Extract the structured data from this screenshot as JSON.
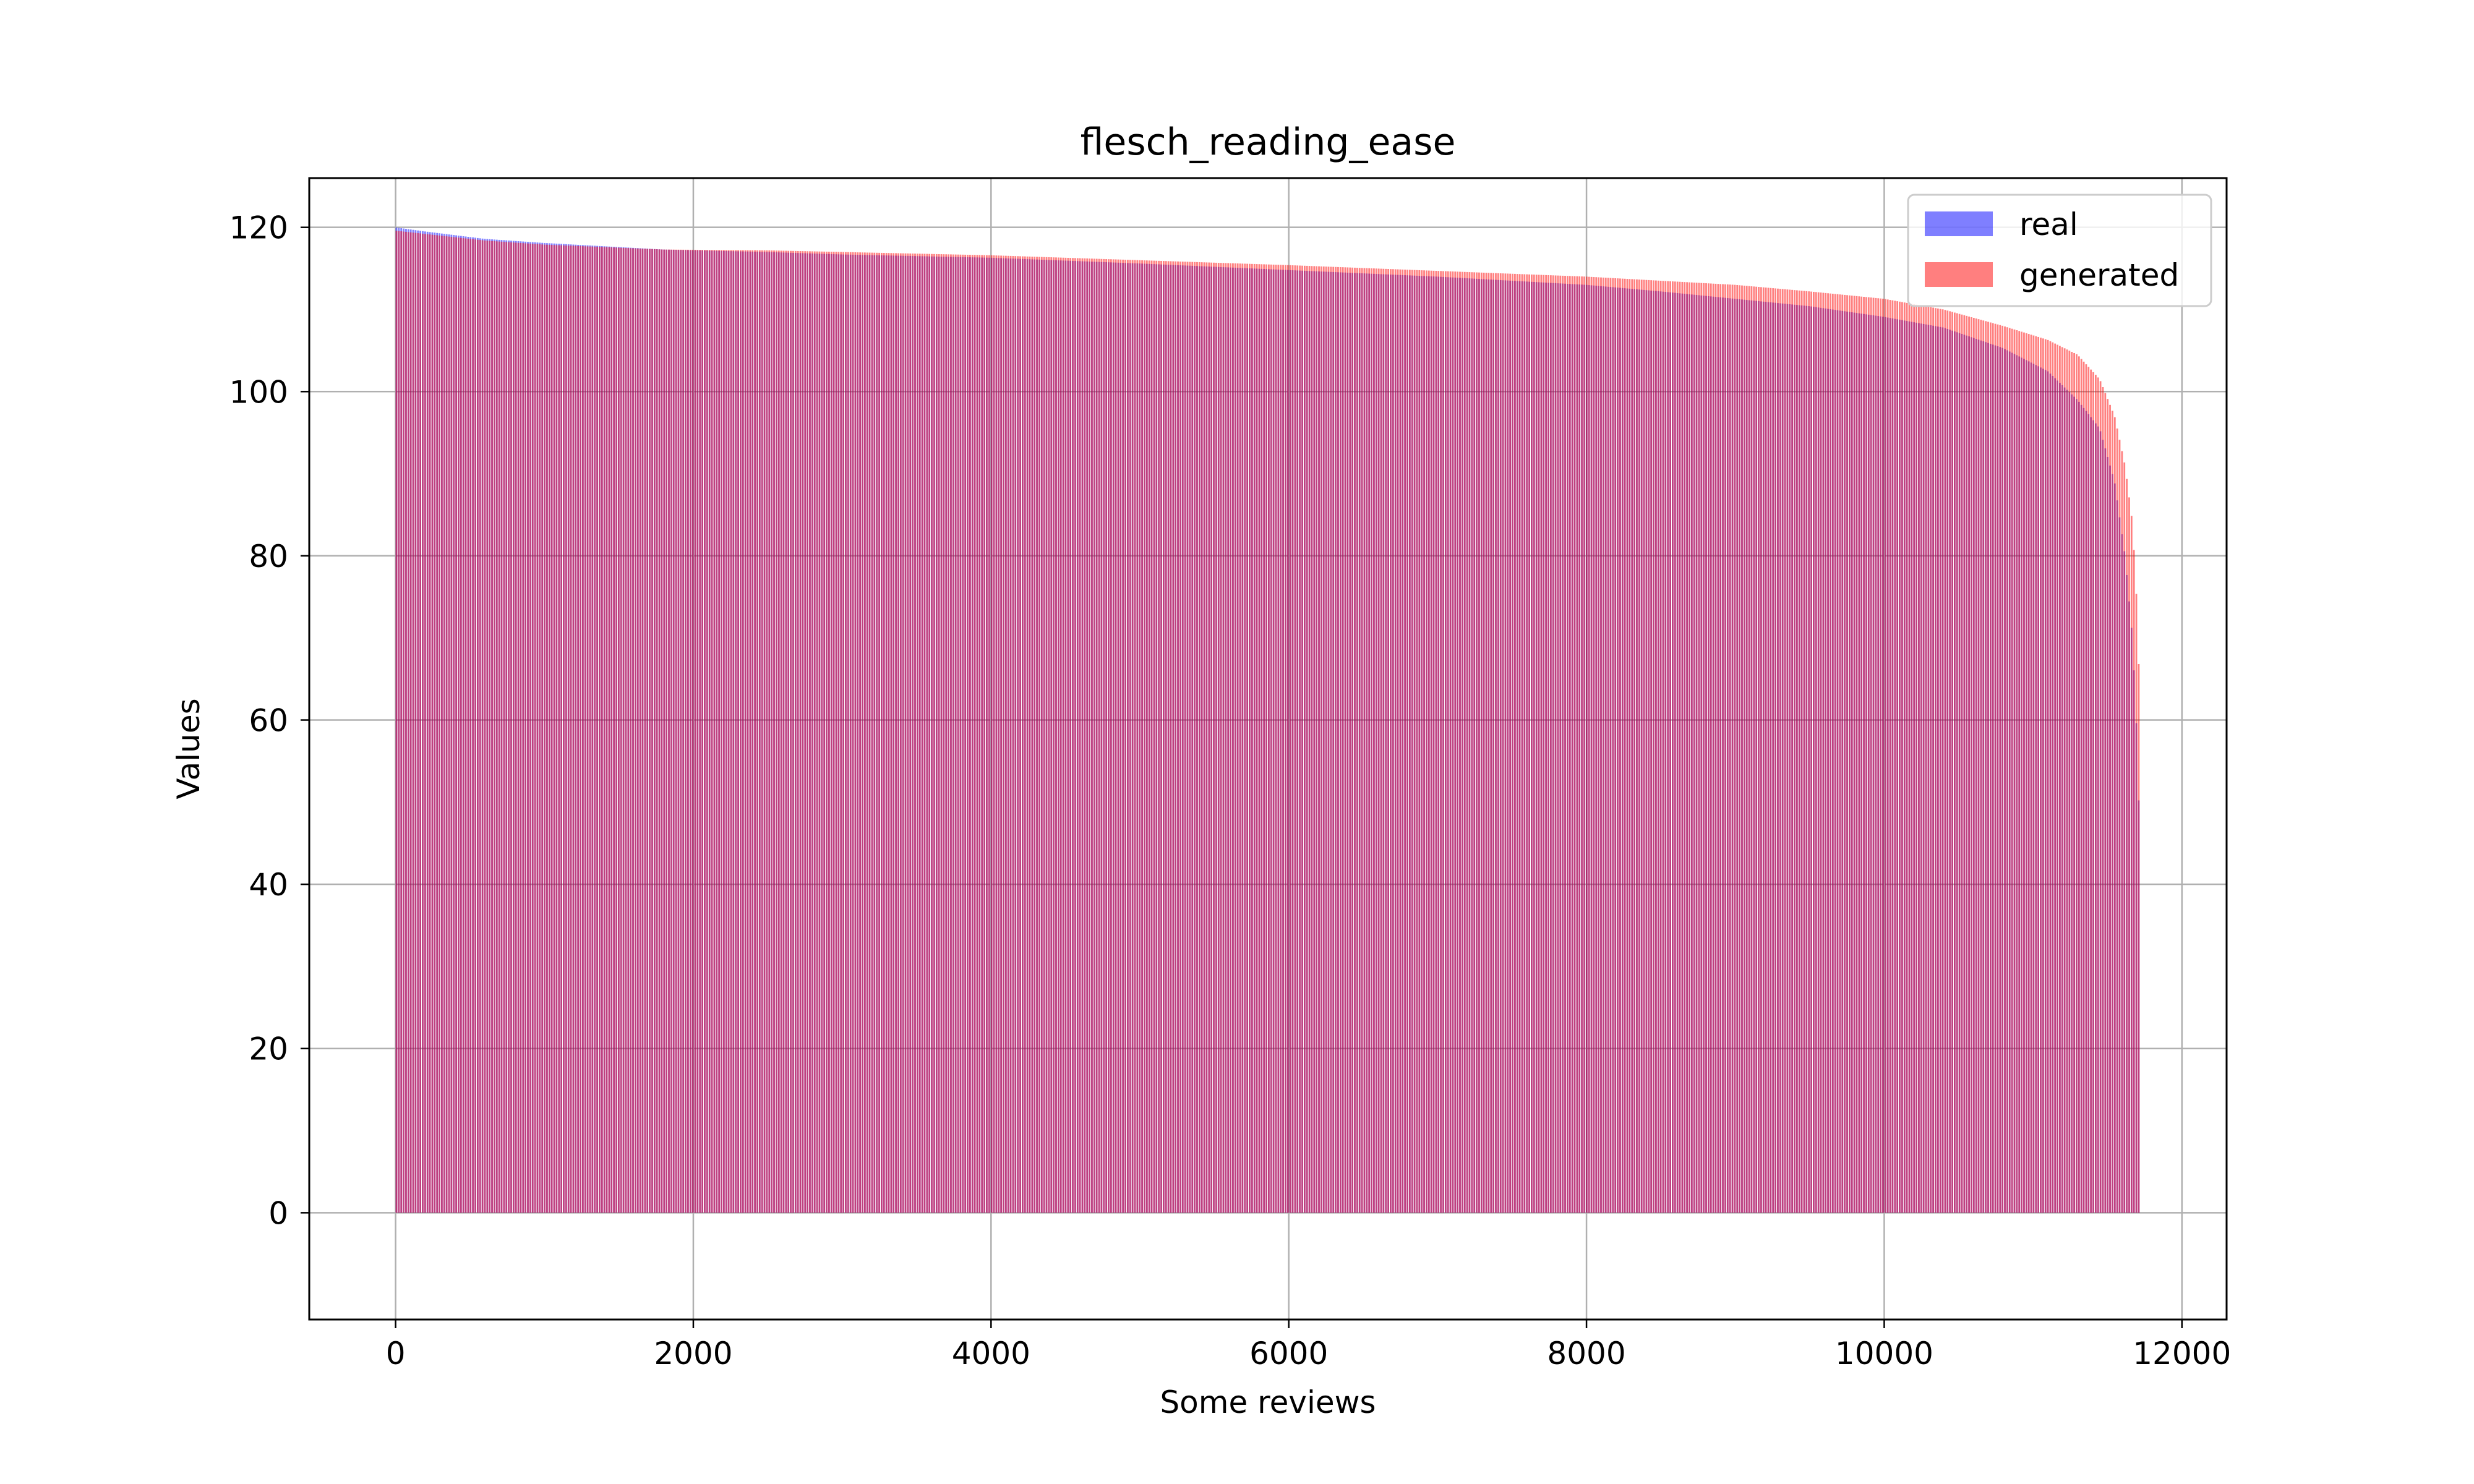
{
  "chart_data": {
    "type": "bar",
    "title": "flesch_reading_ease",
    "xlabel": "Some reviews",
    "ylabel": "Values",
    "xlim": [
      -580,
      12300
    ],
    "ylim": [
      -13,
      126
    ],
    "x_ticks": [
      0,
      2000,
      4000,
      6000,
      8000,
      10000,
      12000
    ],
    "y_ticks": [
      0,
      20,
      40,
      60,
      80,
      100,
      120
    ],
    "grid": true,
    "legend_position": "upper-right",
    "n_points": 11720,
    "series": [
      {
        "name": "real",
        "color": "#0000ff",
        "alpha": 0.5,
        "curve": [
          [
            0,
            120
          ],
          [
            200,
            119.5
          ],
          [
            600,
            118.6
          ],
          [
            1000,
            118.1
          ],
          [
            1400,
            117.7
          ],
          [
            1800,
            117.3
          ],
          [
            2500,
            117.0
          ],
          [
            3000,
            116.7
          ],
          [
            4000,
            116.3
          ],
          [
            5000,
            115.6
          ],
          [
            6000,
            114.8
          ],
          [
            7000,
            114.0
          ],
          [
            8000,
            113.0
          ],
          [
            8500,
            112.2
          ],
          [
            9000,
            111.3
          ],
          [
            9500,
            110.4
          ],
          [
            10000,
            109.1
          ],
          [
            10400,
            107.8
          ],
          [
            10800,
            105.3
          ],
          [
            11100,
            102.5
          ],
          [
            11300,
            99.0
          ],
          [
            11450,
            95.5
          ],
          [
            11550,
            89.0
          ],
          [
            11620,
            80.0
          ],
          [
            11670,
            70.0
          ],
          [
            11700,
            58.0
          ],
          [
            11720,
            45.0
          ]
        ]
      },
      {
        "name": "generated",
        "color": "#ff0000",
        "alpha": 0.5,
        "curve": [
          [
            0,
            119.6
          ],
          [
            200,
            119.2
          ],
          [
            600,
            118.4
          ],
          [
            1000,
            117.9
          ],
          [
            1400,
            117.6
          ],
          [
            1800,
            117.3
          ],
          [
            2500,
            117.2
          ],
          [
            3000,
            117.0
          ],
          [
            4000,
            116.6
          ],
          [
            5000,
            116.0
          ],
          [
            6000,
            115.4
          ],
          [
            7000,
            114.7
          ],
          [
            8000,
            114.0
          ],
          [
            8500,
            113.5
          ],
          [
            9000,
            113.0
          ],
          [
            9500,
            112.2
          ],
          [
            10000,
            111.3
          ],
          [
            10400,
            110.0
          ],
          [
            10800,
            108.0
          ],
          [
            11100,
            106.3
          ],
          [
            11300,
            104.5
          ],
          [
            11450,
            101.5
          ],
          [
            11550,
            97.0
          ],
          [
            11620,
            91.0
          ],
          [
            11670,
            84.0
          ],
          [
            11700,
            74.0
          ],
          [
            11720,
            62.0
          ]
        ]
      }
    ]
  }
}
